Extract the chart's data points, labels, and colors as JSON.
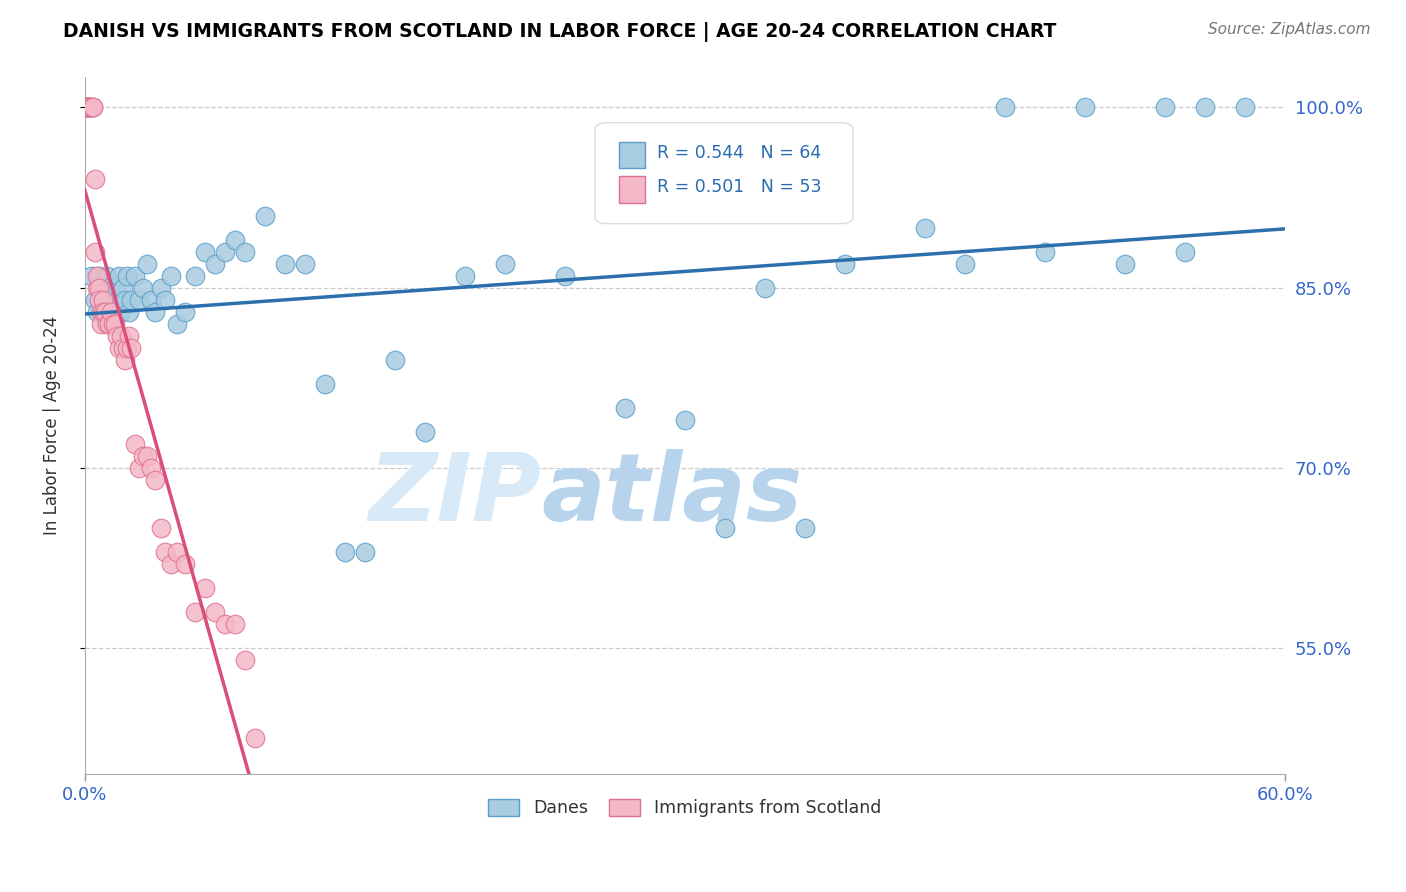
{
  "title": "DANISH VS IMMIGRANTS FROM SCOTLAND IN LABOR FORCE | AGE 20-24 CORRELATION CHART",
  "source": "Source: ZipAtlas.com",
  "ylabel": "In Labor Force | Age 20-24",
  "xlim": [
    0.0,
    0.6
  ],
  "ylim": [
    0.445,
    1.025
  ],
  "yticks": [
    0.55,
    0.7,
    0.85,
    1.0
  ],
  "ytick_labels": [
    "55.0%",
    "70.0%",
    "85.0%",
    "100.0%"
  ],
  "xticks": [
    0.0,
    0.6
  ],
  "xtick_labels": [
    "0.0%",
    "60.0%"
  ],
  "danes_R": 0.544,
  "danes_N": 64,
  "scotland_R": 0.501,
  "scotland_N": 53,
  "blue_scatter_color": "#a8cce0",
  "blue_scatter_edge": "#5b9ec9",
  "pink_scatter_color": "#f4b8c8",
  "pink_scatter_edge": "#e07090",
  "blue_line_color": "#2c6fad",
  "pink_line_color": "#d94f7a",
  "legend_box_blue": "#a8cce0",
  "legend_box_blue_edge": "#5b9ec9",
  "legend_box_pink": "#f4b8c8",
  "legend_box_pink_edge": "#e07090",
  "watermark": "ZIPatlas",
  "danes_x": [
    0.003,
    0.005,
    0.006,
    0.007,
    0.008,
    0.009,
    0.01,
    0.011,
    0.012,
    0.013,
    0.014,
    0.015,
    0.016,
    0.017,
    0.018,
    0.019,
    0.02,
    0.021,
    0.022,
    0.023,
    0.025,
    0.027,
    0.029,
    0.031,
    0.033,
    0.035,
    0.038,
    0.04,
    0.043,
    0.046,
    0.05,
    0.055,
    0.06,
    0.065,
    0.07,
    0.075,
    0.08,
    0.09,
    0.1,
    0.11,
    0.12,
    0.13,
    0.14,
    0.155,
    0.17,
    0.19,
    0.21,
    0.24,
    0.27,
    0.3,
    0.34,
    0.38,
    0.42,
    0.46,
    0.5,
    0.54,
    0.56,
    0.58,
    0.32,
    0.36,
    0.44,
    0.48,
    0.52,
    0.55
  ],
  "danes_y": [
    0.86,
    0.84,
    0.83,
    0.86,
    0.85,
    0.84,
    0.83,
    0.86,
    0.85,
    0.84,
    0.83,
    0.85,
    0.84,
    0.86,
    0.83,
    0.85,
    0.84,
    0.86,
    0.83,
    0.84,
    0.86,
    0.84,
    0.85,
    0.87,
    0.84,
    0.83,
    0.85,
    0.84,
    0.86,
    0.82,
    0.83,
    0.86,
    0.88,
    0.87,
    0.88,
    0.89,
    0.88,
    0.91,
    0.87,
    0.87,
    0.77,
    0.63,
    0.63,
    0.79,
    0.73,
    0.86,
    0.87,
    0.86,
    0.75,
    0.74,
    0.85,
    0.87,
    0.9,
    1.0,
    1.0,
    1.0,
    1.0,
    1.0,
    0.65,
    0.65,
    0.87,
    0.88,
    0.87,
    0.88
  ],
  "scotland_x": [
    0.0,
    0.0,
    0.001,
    0.001,
    0.001,
    0.002,
    0.002,
    0.003,
    0.003,
    0.004,
    0.004,
    0.005,
    0.005,
    0.006,
    0.006,
    0.007,
    0.007,
    0.008,
    0.008,
    0.009,
    0.009,
    0.01,
    0.011,
    0.012,
    0.013,
    0.014,
    0.015,
    0.016,
    0.017,
    0.018,
    0.019,
    0.02,
    0.021,
    0.022,
    0.023,
    0.025,
    0.027,
    0.029,
    0.031,
    0.033,
    0.035,
    0.038,
    0.04,
    0.043,
    0.046,
    0.05,
    0.055,
    0.06,
    0.065,
    0.07,
    0.075,
    0.08,
    0.085
  ],
  "scotland_y": [
    1.0,
    1.0,
    1.0,
    1.0,
    1.0,
    1.0,
    1.0,
    1.0,
    1.0,
    1.0,
    1.0,
    0.94,
    0.88,
    0.85,
    0.86,
    0.85,
    0.84,
    0.83,
    0.82,
    0.84,
    0.83,
    0.83,
    0.82,
    0.82,
    0.83,
    0.82,
    0.82,
    0.81,
    0.8,
    0.81,
    0.8,
    0.79,
    0.8,
    0.81,
    0.8,
    0.72,
    0.7,
    0.71,
    0.71,
    0.7,
    0.69,
    0.65,
    0.63,
    0.62,
    0.63,
    0.62,
    0.58,
    0.6,
    0.58,
    0.57,
    0.57,
    0.54,
    0.475
  ]
}
